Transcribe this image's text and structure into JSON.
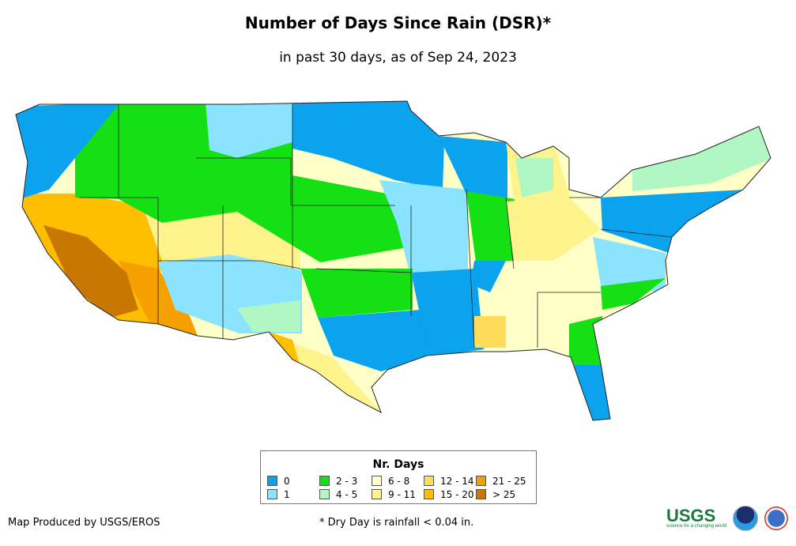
{
  "title": "Number of Days Since Rain (DSR)*",
  "subtitle": "in past 30 days, as of Sep 24, 2023",
  "legend": {
    "title": "Nr. Days",
    "items": [
      {
        "label": "0",
        "color": "#0ba2ee"
      },
      {
        "label": "2 - 3",
        "color": "#14e014"
      },
      {
        "label": "6 - 8",
        "color": "#ffffc8"
      },
      {
        "label": "12 - 14",
        "color": "#ffdc5a"
      },
      {
        "label": "21 - 25",
        "color": "#f5a000"
      },
      {
        "label": "1",
        "color": "#8ae4ff"
      },
      {
        "label": "4 - 5",
        "color": "#b0f7c4"
      },
      {
        "label": "9 - 11",
        "color": "#fff38c"
      },
      {
        "label": "15 - 20",
        "color": "#ffbe00"
      },
      {
        "label": "> 25",
        "color": "#c87800"
      }
    ]
  },
  "credit": "Map Produced by USGS/EROS",
  "footnote": "* Dry Day is rainfall < 0.04 in.",
  "logos": {
    "usgs": "USGS",
    "usgs_tagline": "science for a changing world",
    "noaa": "NOAA",
    "nws": "National Weather Service"
  }
}
